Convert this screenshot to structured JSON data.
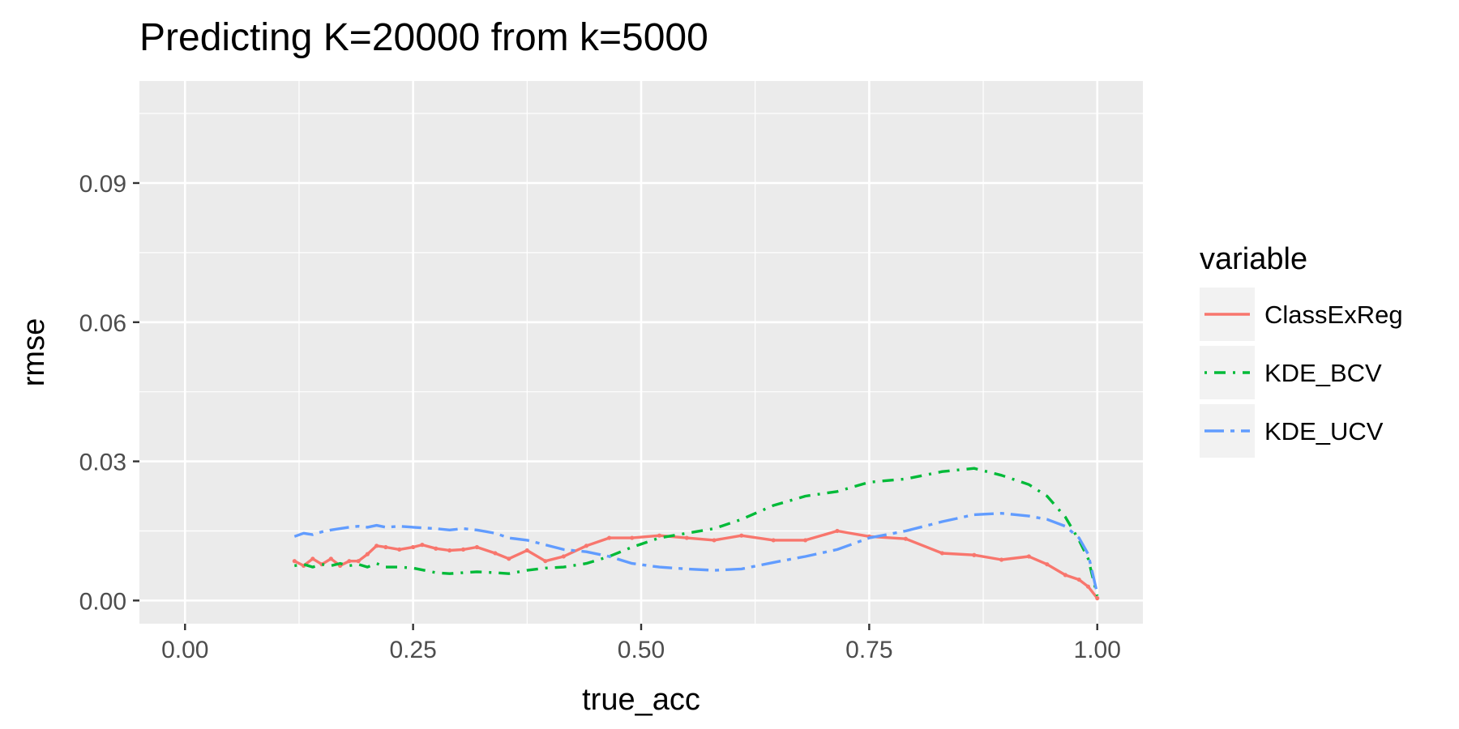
{
  "chart_data": {
    "type": "line",
    "title": "Predicting K=20000 from k=5000",
    "xlabel": "true_acc",
    "ylabel": "rmse",
    "xlim": [
      -0.05,
      1.05
    ],
    "ylim": [
      -0.005,
      0.112
    ],
    "x_ticks": [
      0,
      0.25,
      0.5,
      0.75,
      1.0
    ],
    "x_tick_labels": [
      "0.00",
      "0.25",
      "0.50",
      "0.75",
      "1.00"
    ],
    "y_ticks": [
      0,
      0.03,
      0.06,
      0.09
    ],
    "y_tick_labels": [
      "0.00",
      "0.03",
      "0.06",
      "0.09"
    ],
    "grid": true,
    "legend": {
      "title": "variable",
      "position": "right"
    },
    "series": [
      {
        "name": "ClassExReg",
        "color": "#F8766D",
        "dash": "solid",
        "points": true,
        "x": [
          0.12,
          0.13,
          0.14,
          0.15,
          0.16,
          0.17,
          0.18,
          0.19,
          0.2,
          0.21,
          0.22,
          0.235,
          0.25,
          0.26,
          0.275,
          0.29,
          0.305,
          0.32,
          0.34,
          0.355,
          0.375,
          0.395,
          0.415,
          0.44,
          0.465,
          0.49,
          0.52,
          0.55,
          0.58,
          0.61,
          0.645,
          0.68,
          0.715,
          0.75,
          0.79,
          0.83,
          0.865,
          0.895,
          0.925,
          0.945,
          0.965,
          0.98,
          0.99,
          1.0
        ],
        "y": [
          0.0085,
          0.0075,
          0.009,
          0.0078,
          0.009,
          0.0075,
          0.0085,
          0.0085,
          0.01,
          0.0118,
          0.0115,
          0.011,
          0.0115,
          0.012,
          0.0112,
          0.0108,
          0.011,
          0.0115,
          0.0102,
          0.009,
          0.0108,
          0.0085,
          0.0095,
          0.0118,
          0.0135,
          0.0135,
          0.014,
          0.0135,
          0.013,
          0.014,
          0.013,
          0.013,
          0.015,
          0.0138,
          0.0133,
          0.0102,
          0.0098,
          0.0088,
          0.0095,
          0.0078,
          0.0055,
          0.0045,
          0.003,
          0.0005
        ]
      },
      {
        "name": "KDE_BCV",
        "color": "#00BA38",
        "dash": "dashdot",
        "points": false,
        "x": [
          0.12,
          0.13,
          0.14,
          0.15,
          0.16,
          0.17,
          0.18,
          0.19,
          0.2,
          0.21,
          0.22,
          0.235,
          0.25,
          0.275,
          0.29,
          0.305,
          0.32,
          0.34,
          0.355,
          0.375,
          0.395,
          0.415,
          0.44,
          0.465,
          0.49,
          0.52,
          0.55,
          0.58,
          0.61,
          0.645,
          0.68,
          0.715,
          0.75,
          0.79,
          0.83,
          0.865,
          0.895,
          0.925,
          0.945,
          0.965,
          0.98,
          0.99,
          1.0
        ],
        "y": [
          0.0075,
          0.0078,
          0.0072,
          0.0078,
          0.0075,
          0.008,
          0.0075,
          0.0078,
          0.0072,
          0.008,
          0.0072,
          0.0072,
          0.007,
          0.006,
          0.0058,
          0.006,
          0.0062,
          0.006,
          0.0058,
          0.0065,
          0.007,
          0.0072,
          0.008,
          0.0095,
          0.0115,
          0.0135,
          0.0145,
          0.0155,
          0.0175,
          0.0205,
          0.0225,
          0.0235,
          0.0255,
          0.0262,
          0.0278,
          0.0285,
          0.027,
          0.025,
          0.0225,
          0.018,
          0.013,
          0.009,
          0.001
        ]
      },
      {
        "name": "KDE_UCV",
        "color": "#619CFF",
        "dash": "longdash",
        "points": false,
        "x": [
          0.12,
          0.13,
          0.14,
          0.15,
          0.16,
          0.17,
          0.18,
          0.19,
          0.2,
          0.21,
          0.22,
          0.235,
          0.25,
          0.275,
          0.29,
          0.305,
          0.32,
          0.34,
          0.355,
          0.375,
          0.395,
          0.415,
          0.44,
          0.465,
          0.49,
          0.52,
          0.55,
          0.58,
          0.61,
          0.645,
          0.68,
          0.715,
          0.75,
          0.79,
          0.83,
          0.865,
          0.895,
          0.925,
          0.945,
          0.965,
          0.98,
          0.99,
          1.0
        ],
        "y": [
          0.0138,
          0.0145,
          0.0142,
          0.0148,
          0.0152,
          0.0155,
          0.0158,
          0.016,
          0.0158,
          0.0162,
          0.0158,
          0.016,
          0.0158,
          0.0155,
          0.0152,
          0.0155,
          0.0152,
          0.0145,
          0.0135,
          0.013,
          0.012,
          0.011,
          0.0105,
          0.0095,
          0.008,
          0.0072,
          0.0068,
          0.0065,
          0.0068,
          0.0082,
          0.0095,
          0.011,
          0.0135,
          0.015,
          0.017,
          0.0185,
          0.0188,
          0.0182,
          0.0175,
          0.016,
          0.0135,
          0.01,
          0.0015
        ]
      }
    ]
  }
}
